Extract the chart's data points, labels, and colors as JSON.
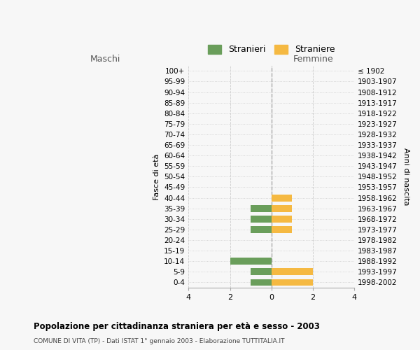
{
  "age_groups": [
    "0-4",
    "5-9",
    "10-14",
    "15-19",
    "20-24",
    "25-29",
    "30-34",
    "35-39",
    "40-44",
    "45-49",
    "50-54",
    "55-59",
    "60-64",
    "65-69",
    "70-74",
    "75-79",
    "80-84",
    "85-89",
    "90-94",
    "95-99",
    "100+"
  ],
  "birth_years": [
    "1998-2002",
    "1993-1997",
    "1988-1992",
    "1983-1987",
    "1978-1982",
    "1973-1977",
    "1968-1972",
    "1963-1967",
    "1958-1962",
    "1953-1957",
    "1948-1952",
    "1943-1947",
    "1938-1942",
    "1933-1937",
    "1928-1932",
    "1923-1927",
    "1918-1922",
    "1913-1917",
    "1908-1912",
    "1903-1907",
    "≤ 1902"
  ],
  "maschi": [
    1,
    1,
    2,
    0,
    0,
    1,
    1,
    1,
    0,
    0,
    0,
    0,
    0,
    0,
    0,
    0,
    0,
    0,
    0,
    0,
    0
  ],
  "femmine": [
    2,
    2,
    0,
    0,
    0,
    1,
    1,
    1,
    1,
    0,
    0,
    0,
    0,
    0,
    0,
    0,
    0,
    0,
    0,
    0,
    0
  ],
  "color_maschi": "#6a9e5b",
  "color_femmine": "#f5b942",
  "xlim": 4,
  "title": "Popolazione per cittadinanza straniera per età e sesso - 2003",
  "subtitle": "COMUNE DI VITA (TP) - Dati ISTAT 1° gennaio 2003 - Elaborazione TUTTITALIA.IT",
  "ylabel_left": "Fasce di età",
  "ylabel_right": "Anni di nascita",
  "header_left": "Maschi",
  "header_right": "Femmine",
  "legend_stranieri": "Stranieri",
  "legend_straniere": "Straniere",
  "background_color": "#f7f7f7",
  "grid_color": "#cccccc",
  "bar_height": 0.65
}
